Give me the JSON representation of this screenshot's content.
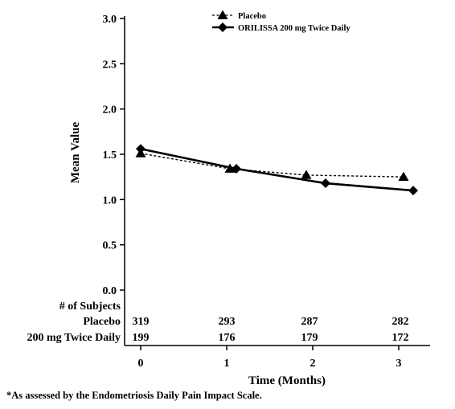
{
  "chart_data": {
    "type": "line",
    "xlabel": "Time (Months)",
    "ylabel": "Mean Value",
    "ylim": [
      0,
      3.0
    ],
    "yticks": [
      "0.0",
      "0.5",
      "1.0",
      "1.5",
      "2.0",
      "2.5",
      "3.0"
    ],
    "xticks": [
      "0",
      "1",
      "2",
      "3"
    ],
    "grid": false,
    "legend_position": "top",
    "series": [
      {
        "name": "Placebo",
        "style": "dashed",
        "marker": "triangle",
        "color": "#000000",
        "x": [
          0,
          1,
          2,
          3
        ],
        "y": [
          1.51,
          1.34,
          1.27,
          1.25
        ]
      },
      {
        "name": "ORILISSA 200 mg Twice Daily",
        "style": "solid",
        "marker": "diamond",
        "color": "#000000",
        "x": [
          0,
          1,
          2,
          3
        ],
        "y": [
          1.56,
          1.34,
          1.18,
          1.1
        ]
      }
    ],
    "subjects_table": {
      "header": "# of Subjects",
      "rows": [
        {
          "label": "Placebo",
          "values": [
            "319",
            "293",
            "287",
            "282"
          ]
        },
        {
          "label": "200 mg Twice Daily",
          "values": [
            "199",
            "176",
            "179",
            "172"
          ]
        }
      ]
    },
    "footnote": "*As assessed by the Endometriosis Daily Pain Impact Scale."
  }
}
